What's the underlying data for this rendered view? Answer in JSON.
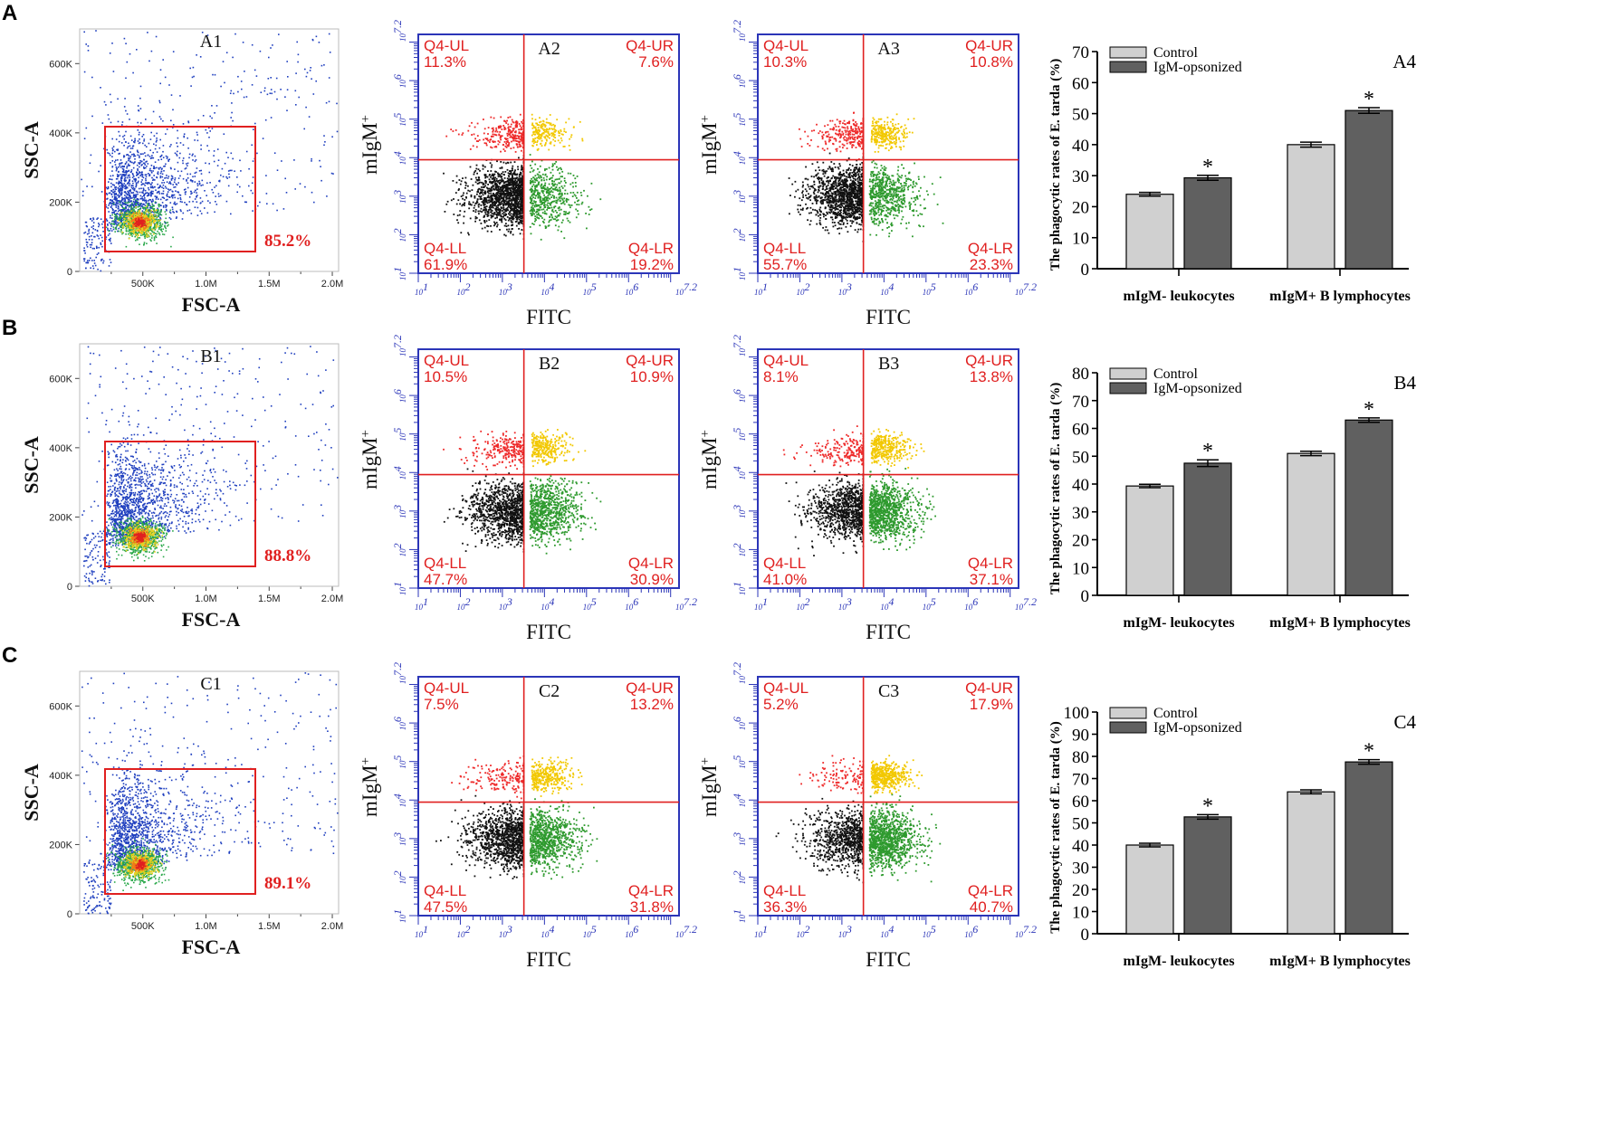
{
  "colors": {
    "red": "#e02020",
    "blue": "#2b35b8",
    "ul_dots": "#ee2a2a",
    "ur_dots": "#f2c800",
    "ll_dots": "#111111",
    "lr_dots": "#2e9a2e",
    "scatter_blue": "#1f3fbf",
    "control_bar": "#d0d0d0",
    "igm_bar": "#606060"
  },
  "rows": [
    {
      "letter": "A",
      "gate": {
        "label": "A1",
        "pct": "85.2%",
        "xlabel": "FSC-A",
        "ylabel": "SSC-A",
        "xticks": [
          "500K",
          "1.0M",
          "1.5M",
          "2.0M"
        ],
        "yticks": [
          "0",
          "200K",
          "400K",
          "600K"
        ]
      },
      "quads": [
        {
          "label": "A2",
          "ul": "11.3%",
          "ur": "7.6%",
          "ll": "61.9%",
          "lr": "19.2%"
        },
        {
          "label": "A3",
          "ul": "10.3%",
          "ur": "10.8%",
          "ll": "55.7%",
          "lr": "23.3%"
        }
      ]
    },
    {
      "letter": "B",
      "gate": {
        "label": "B1",
        "pct": "88.8%",
        "xlabel": "FSC-A",
        "ylabel": "SSC-A",
        "xticks": [
          "500K",
          "1.0M",
          "1.5M",
          "2.0M"
        ],
        "yticks": [
          "0",
          "200K",
          "400K",
          "600K"
        ]
      },
      "quads": [
        {
          "label": "B2",
          "ul": "10.5%",
          "ur": "10.9%",
          "ll": "47.7%",
          "lr": "30.9%"
        },
        {
          "label": "B3",
          "ul": "8.1%",
          "ur": "13.8%",
          "ll": "41.0%",
          "lr": "37.1%"
        }
      ]
    },
    {
      "letter": "C",
      "gate": {
        "label": "C1",
        "pct": "89.1%",
        "xlabel": "FSC-A",
        "ylabel": "SSC-A",
        "xticks": [
          "500K",
          "1.0M",
          "1.5M",
          "2.0M"
        ],
        "yticks": [
          "0",
          "200K",
          "400K",
          "600K"
        ]
      },
      "quads": [
        {
          "label": "C2",
          "ul": "7.5%",
          "ur": "13.2%",
          "ll": "47.5%",
          "lr": "31.8%"
        },
        {
          "label": "C3",
          "ul": "5.2%",
          "ur": "17.9%",
          "ll": "36.3%",
          "lr": "40.7%"
        }
      ]
    }
  ],
  "quad_common": {
    "xlabel": "FITC",
    "ylabel": "mIgM",
    "ylabel_sup": "+",
    "name_ul": "Q4-UL",
    "name_ur": "Q4-UR",
    "name_ll": "Q4-LL",
    "name_lr": "Q4-LR",
    "x_exps": [
      "1",
      "2",
      "3",
      "4",
      "5",
      "6",
      "7.2"
    ],
    "y_exps": [
      "1",
      "2",
      "3",
      "4",
      "5",
      "6",
      "7.2"
    ]
  },
  "chart_data": [
    {
      "type": "bar",
      "label": "A4",
      "ylabel": "The phagocytic rates of E. tarda (%)",
      "ylim": [
        0,
        70
      ],
      "yticks": [
        0,
        10,
        20,
        30,
        40,
        50,
        60,
        70
      ],
      "categories": [
        "mIgM- leukocytes",
        "mIgM+ B lymphocytes"
      ],
      "series": [
        {
          "name": "Control",
          "values": [
            24,
            40
          ],
          "errors": [
            0.6,
            0.8
          ]
        },
        {
          "name": "IgM-opsonized",
          "values": [
            29.3,
            51
          ],
          "errors": [
            0.8,
            0.9
          ]
        }
      ],
      "annotations": [
        "*",
        "*"
      ]
    },
    {
      "type": "bar",
      "label": "B4",
      "ylabel": "The phagocytic rates of E. tarda (%)",
      "ylim": [
        0,
        80
      ],
      "yticks": [
        0,
        10,
        20,
        30,
        40,
        50,
        60,
        70,
        80
      ],
      "categories": [
        "mIgM- leukocytes",
        "mIgM+ B lymphocytes"
      ],
      "series": [
        {
          "name": "Control",
          "values": [
            39.3,
            51
          ],
          "errors": [
            0.6,
            0.8
          ]
        },
        {
          "name": "IgM-opsonized",
          "values": [
            47.5,
            63
          ],
          "errors": [
            1.2,
            0.8
          ]
        }
      ],
      "annotations": [
        "*",
        "*"
      ]
    },
    {
      "type": "bar",
      "label": "C4",
      "ylabel": "The phagocytic rates of E. tarda (%)",
      "ylim": [
        0,
        100
      ],
      "yticks": [
        0,
        10,
        20,
        30,
        40,
        50,
        60,
        70,
        80,
        90,
        100
      ],
      "categories": [
        "mIgM- leukocytes",
        "mIgM+ B lymphocytes"
      ],
      "series": [
        {
          "name": "Control",
          "values": [
            40,
            64
          ],
          "errors": [
            0.8,
            0.9
          ]
        },
        {
          "name": "IgM-opsonized",
          "values": [
            52.7,
            77.5
          ],
          "errors": [
            1.0,
            1.0
          ]
        }
      ],
      "annotations": [
        "*",
        "*"
      ]
    }
  ]
}
